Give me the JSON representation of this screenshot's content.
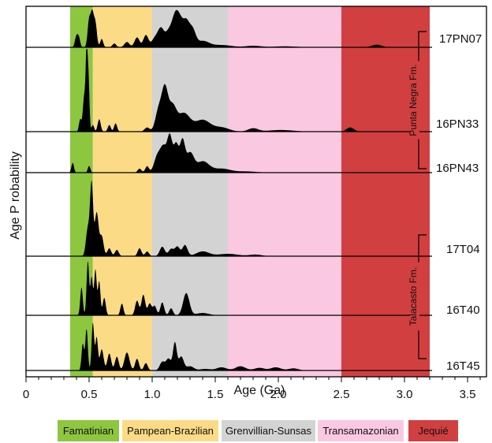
{
  "chart_data": {
    "type": "area",
    "title": "",
    "xlabel": "Age (Ga)",
    "ylabel": "Age P robability",
    "xlim": [
      0,
      3.65
    ],
    "xticks": [
      0,
      0.5,
      1.0,
      1.5,
      2.0,
      2.5,
      3.0,
      3.5
    ],
    "xtick_labels": [
      "0",
      "0.5",
      "1.0",
      "1.5",
      "2.0",
      "2.5",
      "3.0",
      "3.5"
    ],
    "grid": false,
    "age_bands": [
      {
        "name": "Famatinian",
        "from": 0.35,
        "to": 0.53,
        "color": "#8DC63F"
      },
      {
        "name": "Pampean-Brazilian",
        "from": 0.53,
        "to": 1.0,
        "color": "#FCDB86"
      },
      {
        "name": "Grenvillian-Sunsas",
        "from": 1.0,
        "to": 1.6,
        "color": "#D3D3D3"
      },
      {
        "name": "Transamazonian",
        "from": 1.6,
        "to": 2.5,
        "color": "#FBC8E1"
      },
      {
        "name": "Jequié",
        "from": 2.5,
        "to": 3.2,
        "color": "#D13F40"
      }
    ],
    "samples": [
      {
        "name": "17PN07",
        "peaks": [
          [
            0.4,
            0.3,
            0.012
          ],
          [
            0.42,
            0.22,
            0.01
          ],
          [
            0.5,
            0.7,
            0.012
          ],
          [
            0.525,
            0.85,
            0.012
          ],
          [
            0.55,
            0.62,
            0.012
          ],
          [
            0.6,
            0.22,
            0.012
          ],
          [
            0.7,
            0.1,
            0.015
          ],
          [
            0.8,
            0.14,
            0.02
          ],
          [
            0.88,
            0.26,
            0.02
          ],
          [
            0.95,
            0.32,
            0.02
          ],
          [
            1.02,
            0.22,
            0.025
          ],
          [
            1.07,
            0.48,
            0.025
          ],
          [
            1.13,
            0.38,
            0.025
          ],
          [
            1.18,
            0.72,
            0.025
          ],
          [
            1.22,
            0.6,
            0.025
          ],
          [
            1.27,
            0.62,
            0.025
          ],
          [
            1.32,
            0.42,
            0.025
          ],
          [
            1.4,
            0.16,
            0.05
          ],
          [
            1.55,
            0.06,
            0.08
          ],
          [
            1.8,
            0.04,
            0.06
          ],
          [
            2.05,
            0.025,
            0.1
          ],
          [
            2.78,
            0.07,
            0.04
          ]
        ]
      },
      {
        "name": "16PN33",
        "peaks": [
          [
            0.43,
            0.15,
            0.01
          ],
          [
            0.46,
            0.4,
            0.01
          ],
          [
            0.48,
            0.9,
            0.008
          ],
          [
            0.495,
            0.6,
            0.008
          ],
          [
            0.53,
            0.08,
            0.01
          ],
          [
            0.58,
            0.15,
            0.012
          ],
          [
            0.66,
            0.08,
            0.012
          ],
          [
            0.71,
            0.1,
            0.012
          ],
          [
            0.96,
            0.05,
            0.02
          ],
          [
            1.05,
            0.25,
            0.025
          ],
          [
            1.1,
            0.5,
            0.025
          ],
          [
            1.16,
            0.28,
            0.03
          ],
          [
            1.25,
            0.22,
            0.05
          ],
          [
            1.4,
            0.14,
            0.06
          ],
          [
            1.55,
            0.05,
            0.06
          ],
          [
            1.8,
            0.04,
            0.04
          ],
          [
            2.02,
            0.02,
            0.1
          ],
          [
            2.57,
            0.05,
            0.03
          ]
        ]
      },
      {
        "name": "16PN43",
        "peaks": [
          [
            0.37,
            0.25,
            0.01
          ],
          [
            0.5,
            0.17,
            0.01
          ],
          [
            0.9,
            0.1,
            0.015
          ],
          [
            0.96,
            0.16,
            0.015
          ],
          [
            1.04,
            0.4,
            0.025
          ],
          [
            1.09,
            0.62,
            0.025
          ],
          [
            1.14,
            0.88,
            0.02
          ],
          [
            1.19,
            0.7,
            0.02
          ],
          [
            1.24,
            0.78,
            0.02
          ],
          [
            1.3,
            0.48,
            0.03
          ],
          [
            1.4,
            0.28,
            0.05
          ],
          [
            1.55,
            0.1,
            0.07
          ],
          [
            1.75,
            0.03,
            0.08
          ]
        ]
      },
      {
        "name": "17T04",
        "peaks": [
          [
            0.49,
            0.35,
            0.015
          ],
          [
            0.52,
            0.9,
            0.012
          ],
          [
            0.56,
            0.55,
            0.015
          ],
          [
            0.6,
            0.25,
            0.015
          ],
          [
            0.66,
            0.1,
            0.015
          ],
          [
            0.72,
            0.08,
            0.015
          ],
          [
            0.9,
            0.1,
            0.015
          ],
          [
            0.96,
            0.06,
            0.015
          ],
          [
            1.08,
            0.12,
            0.02
          ],
          [
            1.15,
            0.09,
            0.02
          ],
          [
            1.2,
            0.12,
            0.02
          ],
          [
            1.26,
            0.14,
            0.02
          ],
          [
            1.4,
            0.06,
            0.05
          ],
          [
            1.6,
            0.03,
            0.08
          ],
          [
            1.82,
            0.02,
            0.05
          ]
        ]
      },
      {
        "name": "16T40",
        "peaks": [
          [
            0.44,
            0.48,
            0.01
          ],
          [
            0.49,
            0.92,
            0.01
          ],
          [
            0.52,
            0.65,
            0.01
          ],
          [
            0.55,
            0.78,
            0.01
          ],
          [
            0.58,
            0.58,
            0.01
          ],
          [
            0.62,
            0.3,
            0.012
          ],
          [
            0.76,
            0.2,
            0.012
          ],
          [
            0.88,
            0.25,
            0.015
          ],
          [
            0.93,
            0.35,
            0.015
          ],
          [
            0.98,
            0.2,
            0.015
          ],
          [
            1.02,
            0.16,
            0.015
          ],
          [
            1.08,
            0.22,
            0.015
          ],
          [
            1.15,
            0.12,
            0.015
          ],
          [
            1.27,
            0.38,
            0.025
          ],
          [
            1.4,
            0.04,
            0.05
          ]
        ]
      },
      {
        "name": "16T45",
        "peaks": [
          [
            0.45,
            0.5,
            0.01
          ],
          [
            0.48,
            0.78,
            0.01
          ],
          [
            0.53,
            0.9,
            0.01
          ],
          [
            0.56,
            0.62,
            0.01
          ],
          [
            0.6,
            0.4,
            0.015
          ],
          [
            0.66,
            0.32,
            0.015
          ],
          [
            0.72,
            0.26,
            0.015
          ],
          [
            0.8,
            0.34,
            0.02
          ],
          [
            0.88,
            0.22,
            0.015
          ],
          [
            0.95,
            0.14,
            0.015
          ],
          [
            1.08,
            0.16,
            0.02
          ],
          [
            1.13,
            0.22,
            0.02
          ],
          [
            1.18,
            0.52,
            0.015
          ],
          [
            1.23,
            0.26,
            0.02
          ],
          [
            1.3,
            0.08,
            0.03
          ],
          [
            1.42,
            0.03,
            0.04
          ],
          [
            1.55,
            0.06,
            0.04
          ],
          [
            1.7,
            0.08,
            0.04
          ],
          [
            1.85,
            0.05,
            0.04
          ],
          [
            1.98,
            0.06,
            0.04
          ],
          [
            2.12,
            0.04,
            0.04
          ]
        ]
      }
    ],
    "formations": [
      {
        "name": "Punta Negra Fm.",
        "samples": [
          "17PN07",
          "16PN33",
          "16PN43"
        ]
      },
      {
        "name": "Talacasto Fm.",
        "samples": [
          "17T04",
          "16T40",
          "16T45"
        ]
      }
    ]
  }
}
